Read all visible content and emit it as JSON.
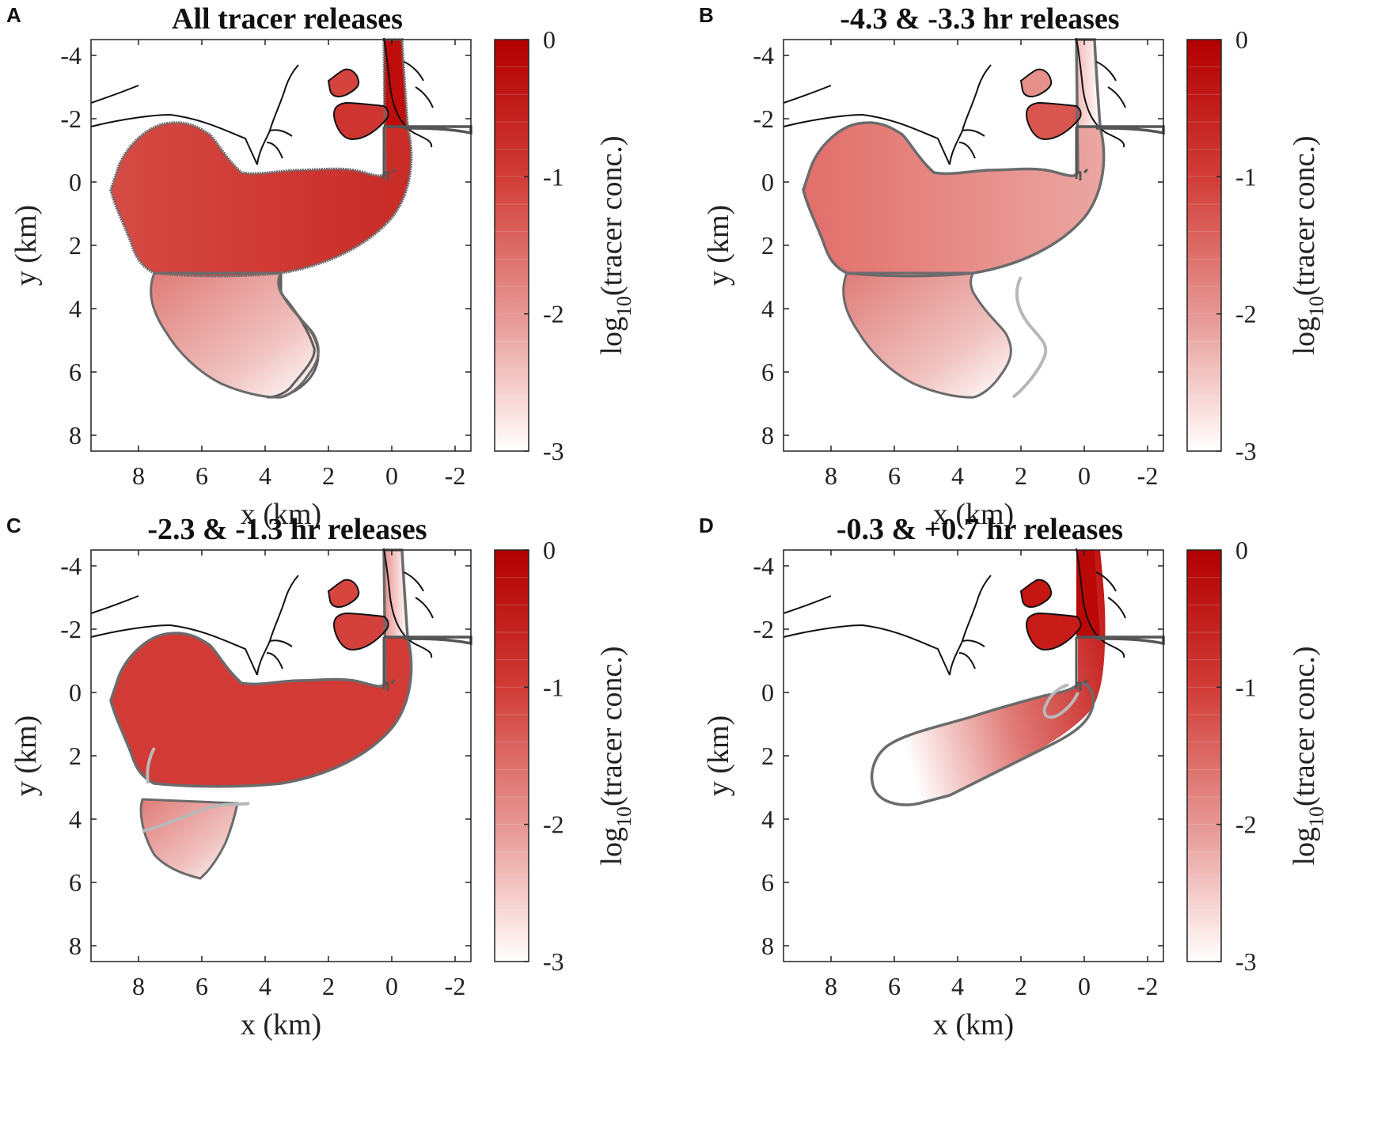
{
  "chart_data": [
    {
      "type": "heatmap",
      "panel": "A",
      "title": "All tracer releases",
      "xlabel": "x (km)",
      "ylabel": "y (km)",
      "xlim": [
        9.5,
        -2.5
      ],
      "ylim": [
        -4.5,
        8.5
      ],
      "xticks": [
        8,
        6,
        4,
        2,
        0,
        -2
      ],
      "yticks": [
        -4,
        -2,
        0,
        2,
        4,
        6,
        8
      ],
      "colorbar": {
        "label_main": "log",
        "label_sub": "10",
        "label_rest": "(tracer conc.)",
        "range": [
          -3,
          0
        ],
        "ticks": [
          0,
          -1,
          -2,
          -3
        ]
      }
    },
    {
      "type": "heatmap",
      "panel": "B",
      "title": "-4.3 & -3.3 hr releases",
      "xlabel": "x (km)",
      "ylabel": "y (km)",
      "xlim": [
        9.5,
        -2.5
      ],
      "ylim": [
        -4.5,
        8.5
      ],
      "xticks": [
        8,
        6,
        4,
        2,
        0,
        -2
      ],
      "yticks": [
        -4,
        -2,
        0,
        2,
        4,
        6,
        8
      ],
      "colorbar": {
        "label_main": "log",
        "label_sub": "10",
        "label_rest": "(tracer conc.)",
        "range": [
          -3,
          0
        ],
        "ticks": [
          0,
          -1,
          -2,
          -3
        ]
      }
    },
    {
      "type": "heatmap",
      "panel": "C",
      "title": "-2.3 & -1.3 hr releases",
      "xlabel": "x (km)",
      "ylabel": "y (km)",
      "xlim": [
        9.5,
        -2.5
      ],
      "ylim": [
        -4.5,
        8.5
      ],
      "xticks": [
        8,
        6,
        4,
        2,
        0,
        -2
      ],
      "yticks": [
        -4,
        -2,
        0,
        2,
        4,
        6,
        8
      ],
      "colorbar": {
        "label_main": "log",
        "label_sub": "10",
        "label_rest": "(tracer conc.)",
        "range": [
          -3,
          0
        ],
        "ticks": [
          0,
          -1,
          -2,
          -3
        ]
      }
    },
    {
      "type": "heatmap",
      "panel": "D",
      "title": "-0.3 & +0.7 hr releases",
      "xlabel": "x (km)",
      "ylabel": "y (km)",
      "xlim": [
        9.5,
        -2.5
      ],
      "ylim": [
        -4.5,
        8.5
      ],
      "xticks": [
        8,
        6,
        4,
        2,
        0,
        -2
      ],
      "yticks": [
        -4,
        -2,
        0,
        2,
        4,
        6,
        8
      ],
      "colorbar": {
        "label_main": "log",
        "label_sub": "10",
        "label_rest": "(tracer conc.)",
        "range": [
          -3,
          0
        ],
        "ticks": [
          0,
          -1,
          -2,
          -3
        ]
      }
    }
  ],
  "colors": {
    "dark_red": "#b20000",
    "mid_red": "#d6453f",
    "light_red": "#e89a97",
    "outline_dark": "#666666",
    "outline_light": "#b5b5b5",
    "coast": "#111111"
  }
}
